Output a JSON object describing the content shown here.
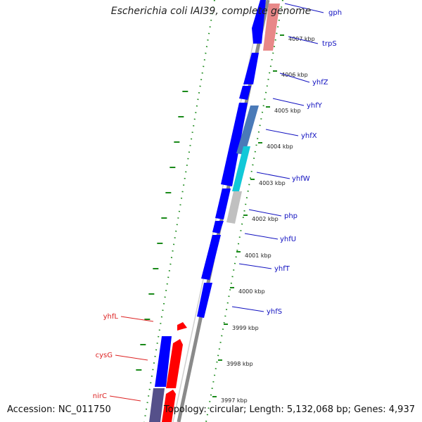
{
  "title": "Escherichia coli IAI39, complete genome",
  "accession": "Accession: NC_011750",
  "topology": "Topology: circular; Length: 5,132,068 bp; Genes: 4,937",
  "colors": {
    "forward_gene": "#0000ff",
    "reverse_gene": "#ff0000",
    "label_forward": "#1010c0",
    "label_reverse": "#dd2222",
    "tick": "#1a8a1a",
    "backbone": "#8a8a8a"
  },
  "kbp_ticks": [
    "4007 kbp",
    "4006 kbp",
    "4005 kbp",
    "4004 kbp",
    "4003 kbp",
    "4002 kbp",
    "4001 kbp",
    "4000 kbp",
    "3999 kbp",
    "3998 kbp",
    "3997 kbp"
  ],
  "genes_forward": [
    "gph",
    "trpS",
    "yhfZ",
    "yhfY",
    "yhfX",
    "yhfW",
    "php",
    "yhfU",
    "yhfT",
    "yhfS"
  ],
  "genes_reverse": [
    "yhfL",
    "cysG",
    "nirC"
  ]
}
